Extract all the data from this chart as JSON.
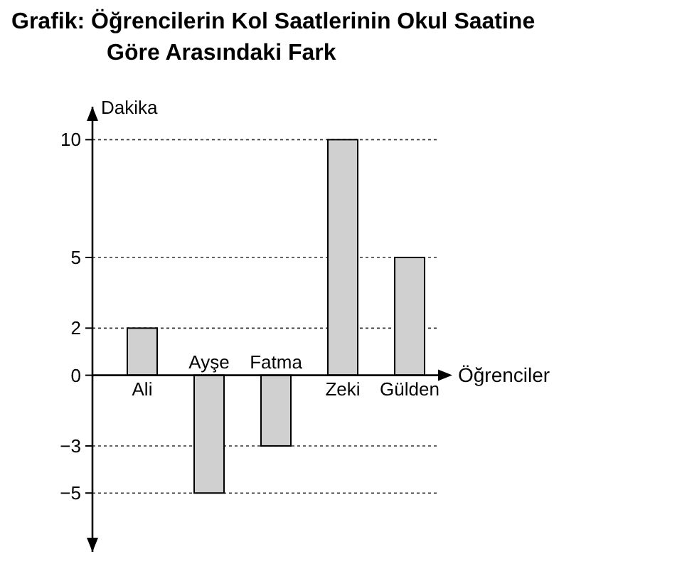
{
  "chart_data": {
    "type": "bar",
    "title": "Grafik: Öğrencilerin Kol Saatlerinin Okul Saatine\nGöre Arasındaki Fark",
    "xlabel": "Öğrenciler",
    "ylabel": "Dakika",
    "categories": [
      "Ali",
      "Ayşe",
      "Fatma",
      "Zeki",
      "Gülden"
    ],
    "values": [
      2,
      -5,
      -3,
      10,
      5
    ],
    "color": "#d0d0d0",
    "ylim": [
      -7.5,
      11.4
    ],
    "yticks": [
      -5,
      -3,
      0,
      2,
      5,
      10
    ],
    "grid": "y"
  }
}
